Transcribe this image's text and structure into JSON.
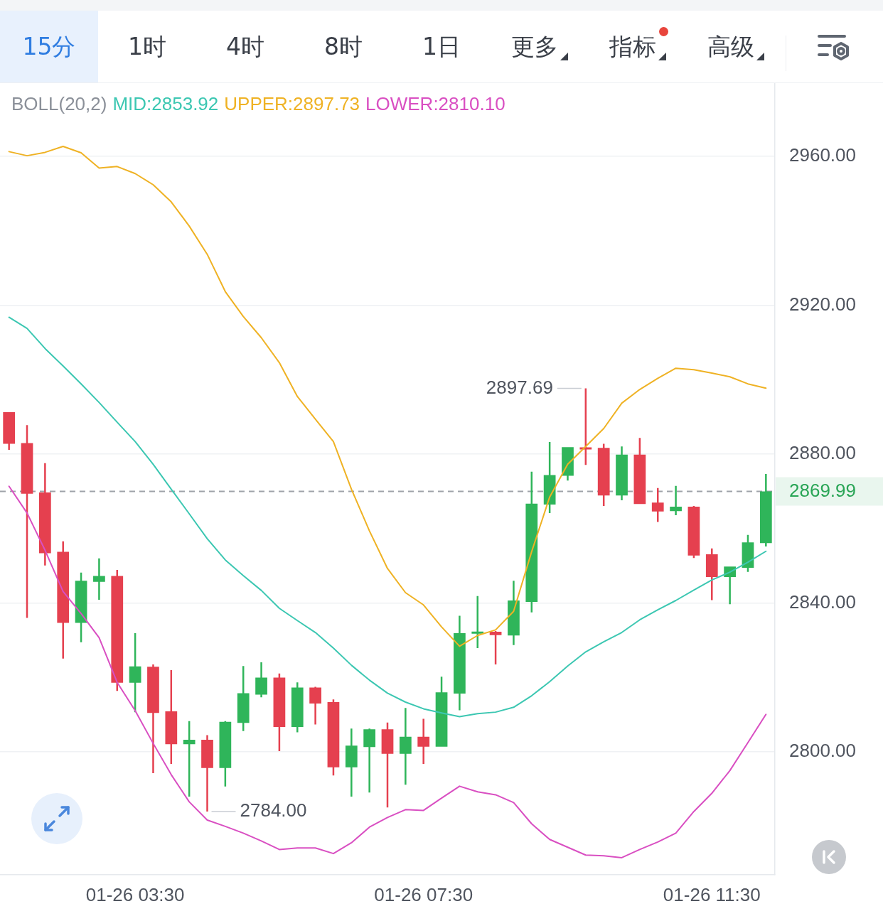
{
  "chart_data": {
    "type": "candlestick",
    "legend_title": "BOLL(20,2)",
    "legend": "top left",
    "grid": "y",
    "categories": [
      null,
      null,
      null,
      null,
      null,
      null,
      null,
      "01-26 03:30",
      null,
      null,
      null,
      null,
      null,
      null,
      null,
      null,
      null,
      null,
      null,
      null,
      null,
      null,
      null,
      "01-26 07:30",
      null,
      null,
      null,
      null,
      null,
      null,
      null,
      null,
      null,
      null,
      null,
      null,
      null,
      null,
      null,
      "01-26 11:30",
      null,
      null,
      null
    ],
    "ylim": [
      2767,
      2979.7
    ],
    "yticks": [
      {
        "value": 2800,
        "label": "2800.00"
      },
      {
        "value": 2840,
        "label": "2840.00"
      },
      2869.99,
      {
        "value": 2880,
        "label": "2880.00"
      },
      {
        "value": 2920,
        "label": "2920.00"
      },
      {
        "value": 2960,
        "label": "2960.00"
      }
    ],
    "series": [
      {
        "type": "line",
        "name": "MID:2853.92",
        "color": "#3cc7b2",
        "values": [
          2916.8,
          2913.8,
          2908.4,
          2903.7,
          2898.9,
          2893.9,
          2888.6,
          2883.4,
          2877.3,
          2870.6,
          2864.0,
          2857.3,
          2851.6,
          2847.4,
          2843.4,
          2838.6,
          2835.3,
          2832.1,
          2827.9,
          2823.3,
          2819.3,
          2815.8,
          2813.4,
          2811.6,
          2810.5,
          2809.5,
          2810.3,
          2810.7,
          2812.0,
          2815.1,
          2818.9,
          2823.1,
          2826.9,
          2829.6,
          2832.1,
          2835.5,
          2838.2,
          2840.7,
          2843.5,
          2846.2,
          2848.3,
          2851.0,
          2853.92
        ]
      },
      {
        "type": "line",
        "name": "UPPER:2897.73",
        "color": "#efb224",
        "values": [
          2961.3,
          2960.2,
          2961.1,
          2962.7,
          2961.0,
          2956.9,
          2957.3,
          2955.4,
          2952.4,
          2947.8,
          2941.3,
          2933.7,
          2923.7,
          2917.0,
          2911.3,
          2904.6,
          2895.5,
          2889.4,
          2883.4,
          2870.6,
          2859.4,
          2849.3,
          2842.8,
          2839.5,
          2833.6,
          2828.4,
          2831.3,
          2832.8,
          2837.8,
          2853.8,
          2868.5,
          2877.3,
          2882.1,
          2886.9,
          2893.7,
          2897.4,
          2900.4,
          2903.1,
          2902.7,
          2901.8,
          2900.8,
          2898.9,
          2897.73
        ]
      },
      {
        "type": "line",
        "name": "LOWER:2810.10",
        "color": "#d94fc2",
        "values": [
          2871.4,
          2864.2,
          2854.2,
          2843.1,
          2837.2,
          2830.7,
          2818.7,
          2811.1,
          2802.3,
          2793.9,
          2786.6,
          2781.7,
          2780.0,
          2778.2,
          2776.1,
          2773.8,
          2774.2,
          2774.2,
          2772.7,
          2775.6,
          2779.8,
          2782.4,
          2784.5,
          2784.3,
          2787.6,
          2790.8,
          2789.3,
          2788.5,
          2786.4,
          2780.7,
          2776.5,
          2774.4,
          2772.3,
          2772.1,
          2771.6,
          2773.8,
          2775.8,
          2778.2,
          2784.0,
          2788.9,
          2795.0,
          2802.5,
          2810.1
        ]
      },
      {
        "ohlc": [
          [
            2891.3,
            2891.3,
            2881.2,
            2882.8
          ],
          [
            2883.0,
            2887.8,
            2836.0,
            2869.4
          ],
          [
            2869.7,
            2877.6,
            2850.1,
            2853.4
          ],
          [
            2853.8,
            2856.6,
            2825.1,
            2834.7
          ],
          [
            2834.7,
            2848.2,
            2829.5,
            2846.0
          ],
          [
            2845.7,
            2852.0,
            2840.9,
            2847.3
          ],
          [
            2847.3,
            2848.9,
            2816.4,
            2818.6
          ],
          [
            2818.6,
            2831.9,
            2810.7,
            2823.0
          ],
          [
            2822.9,
            2823.5,
            2794.3,
            2810.5
          ],
          [
            2810.9,
            2822.0,
            2796.8,
            2802.1
          ],
          [
            2802.1,
            2808.3,
            2788.0,
            2803.3
          ],
          [
            2803.3,
            2804.5,
            2784.0,
            2795.7
          ],
          [
            2795.7,
            2808.3,
            2790.7,
            2808.1
          ],
          [
            2807.8,
            2823.1,
            2805.6,
            2815.8
          ],
          [
            2815.4,
            2824.1,
            2814.7,
            2820.0
          ],
          [
            2820.0,
            2821.1,
            2800.2,
            2806.7
          ],
          [
            2806.7,
            2818.7,
            2805.3,
            2817.3
          ],
          [
            2817.3,
            2817.5,
            2807.4,
            2813.0
          ],
          [
            2813.4,
            2814.1,
            2793.7,
            2795.9
          ],
          [
            2795.9,
            2806.3,
            2788.0,
            2801.7
          ],
          [
            2801.3,
            2806.3,
            2789.1,
            2806.1
          ],
          [
            2806.1,
            2807.9,
            2785.1,
            2799.5
          ],
          [
            2799.5,
            2811.8,
            2791.2,
            2804.1
          ],
          [
            2804.1,
            2808.9,
            2796.8,
            2801.4
          ],
          [
            2801.4,
            2820.2,
            2801.4,
            2816.0
          ],
          [
            2815.7,
            2836.6,
            2811.2,
            2831.9
          ],
          [
            2831.8,
            2841.9,
            2827.9,
            2832.3
          ],
          [
            2832.3,
            2832.5,
            2823.5,
            2831.4
          ],
          [
            2831.3,
            2846.0,
            2828.7,
            2840.7
          ],
          [
            2840.3,
            2875.3,
            2837.5,
            2866.7
          ],
          [
            2866.5,
            2883.3,
            2864.2,
            2874.4
          ],
          [
            2874.2,
            2881.9,
            2872.9,
            2881.9
          ],
          [
            2881.8,
            2897.69,
            2877.1,
            2881.3
          ],
          [
            2881.7,
            2882.8,
            2866.1,
            2868.9
          ],
          [
            2868.9,
            2882.1,
            2867.6,
            2879.9
          ],
          [
            2879.9,
            2884.4,
            2866.6,
            2866.6
          ],
          [
            2867.0,
            2870.9,
            2861.8,
            2864.6
          ],
          [
            2864.7,
            2871.5,
            2863.6,
            2865.9
          ],
          [
            2865.9,
            2866.1,
            2852.1,
            2852.8
          ],
          [
            2853.1,
            2854.7,
            2840.8,
            2847.0
          ],
          [
            2847.0,
            2849.8,
            2839.7,
            2849.8
          ],
          [
            2849.5,
            2858.3,
            2848.4,
            2856.3
          ],
          [
            2856.1,
            2874.7,
            2855.2,
            2869.99
          ]
        ],
        "colors": [
          "#e5404f",
          "#e5404f",
          "#e5404f",
          "#e5404f",
          "#2fb55a",
          "#2fb55a",
          "#e5404f",
          "#2fb55a",
          "#e5404f",
          "#e5404f",
          "#2fb55a",
          "#e5404f",
          "#2fb55a",
          "#2fb55a",
          "#2fb55a",
          "#e5404f",
          "#2fb55a",
          "#e5404f",
          "#e5404f",
          "#2fb55a",
          "#2fb55a",
          "#e5404f",
          "#2fb55a",
          "#e5404f",
          "#2fb55a",
          "#2fb55a",
          "#2fb55a",
          "#e5404f",
          "#2fb55a",
          "#2fb55a",
          "#2fb55a",
          "#2fb55a",
          "#e5404f",
          "#e5404f",
          "#2fb55a",
          "#e5404f",
          "#e5404f",
          "#2fb55a",
          "#e5404f",
          "#e5404f",
          "#2fb55a",
          "#2fb55a",
          "#2fb55a"
        ]
      }
    ],
    "ref_lines": [
      {
        "axis": "y",
        "value": 2869.99,
        "color": "#9ea2a8",
        "line_style": "dashed"
      }
    ],
    "annotations": [
      "15分",
      "1时",
      "4时",
      "8时",
      "1日",
      "更多",
      "指标",
      "高级",
      "2897.69",
      "2784.00"
    ]
  }
}
